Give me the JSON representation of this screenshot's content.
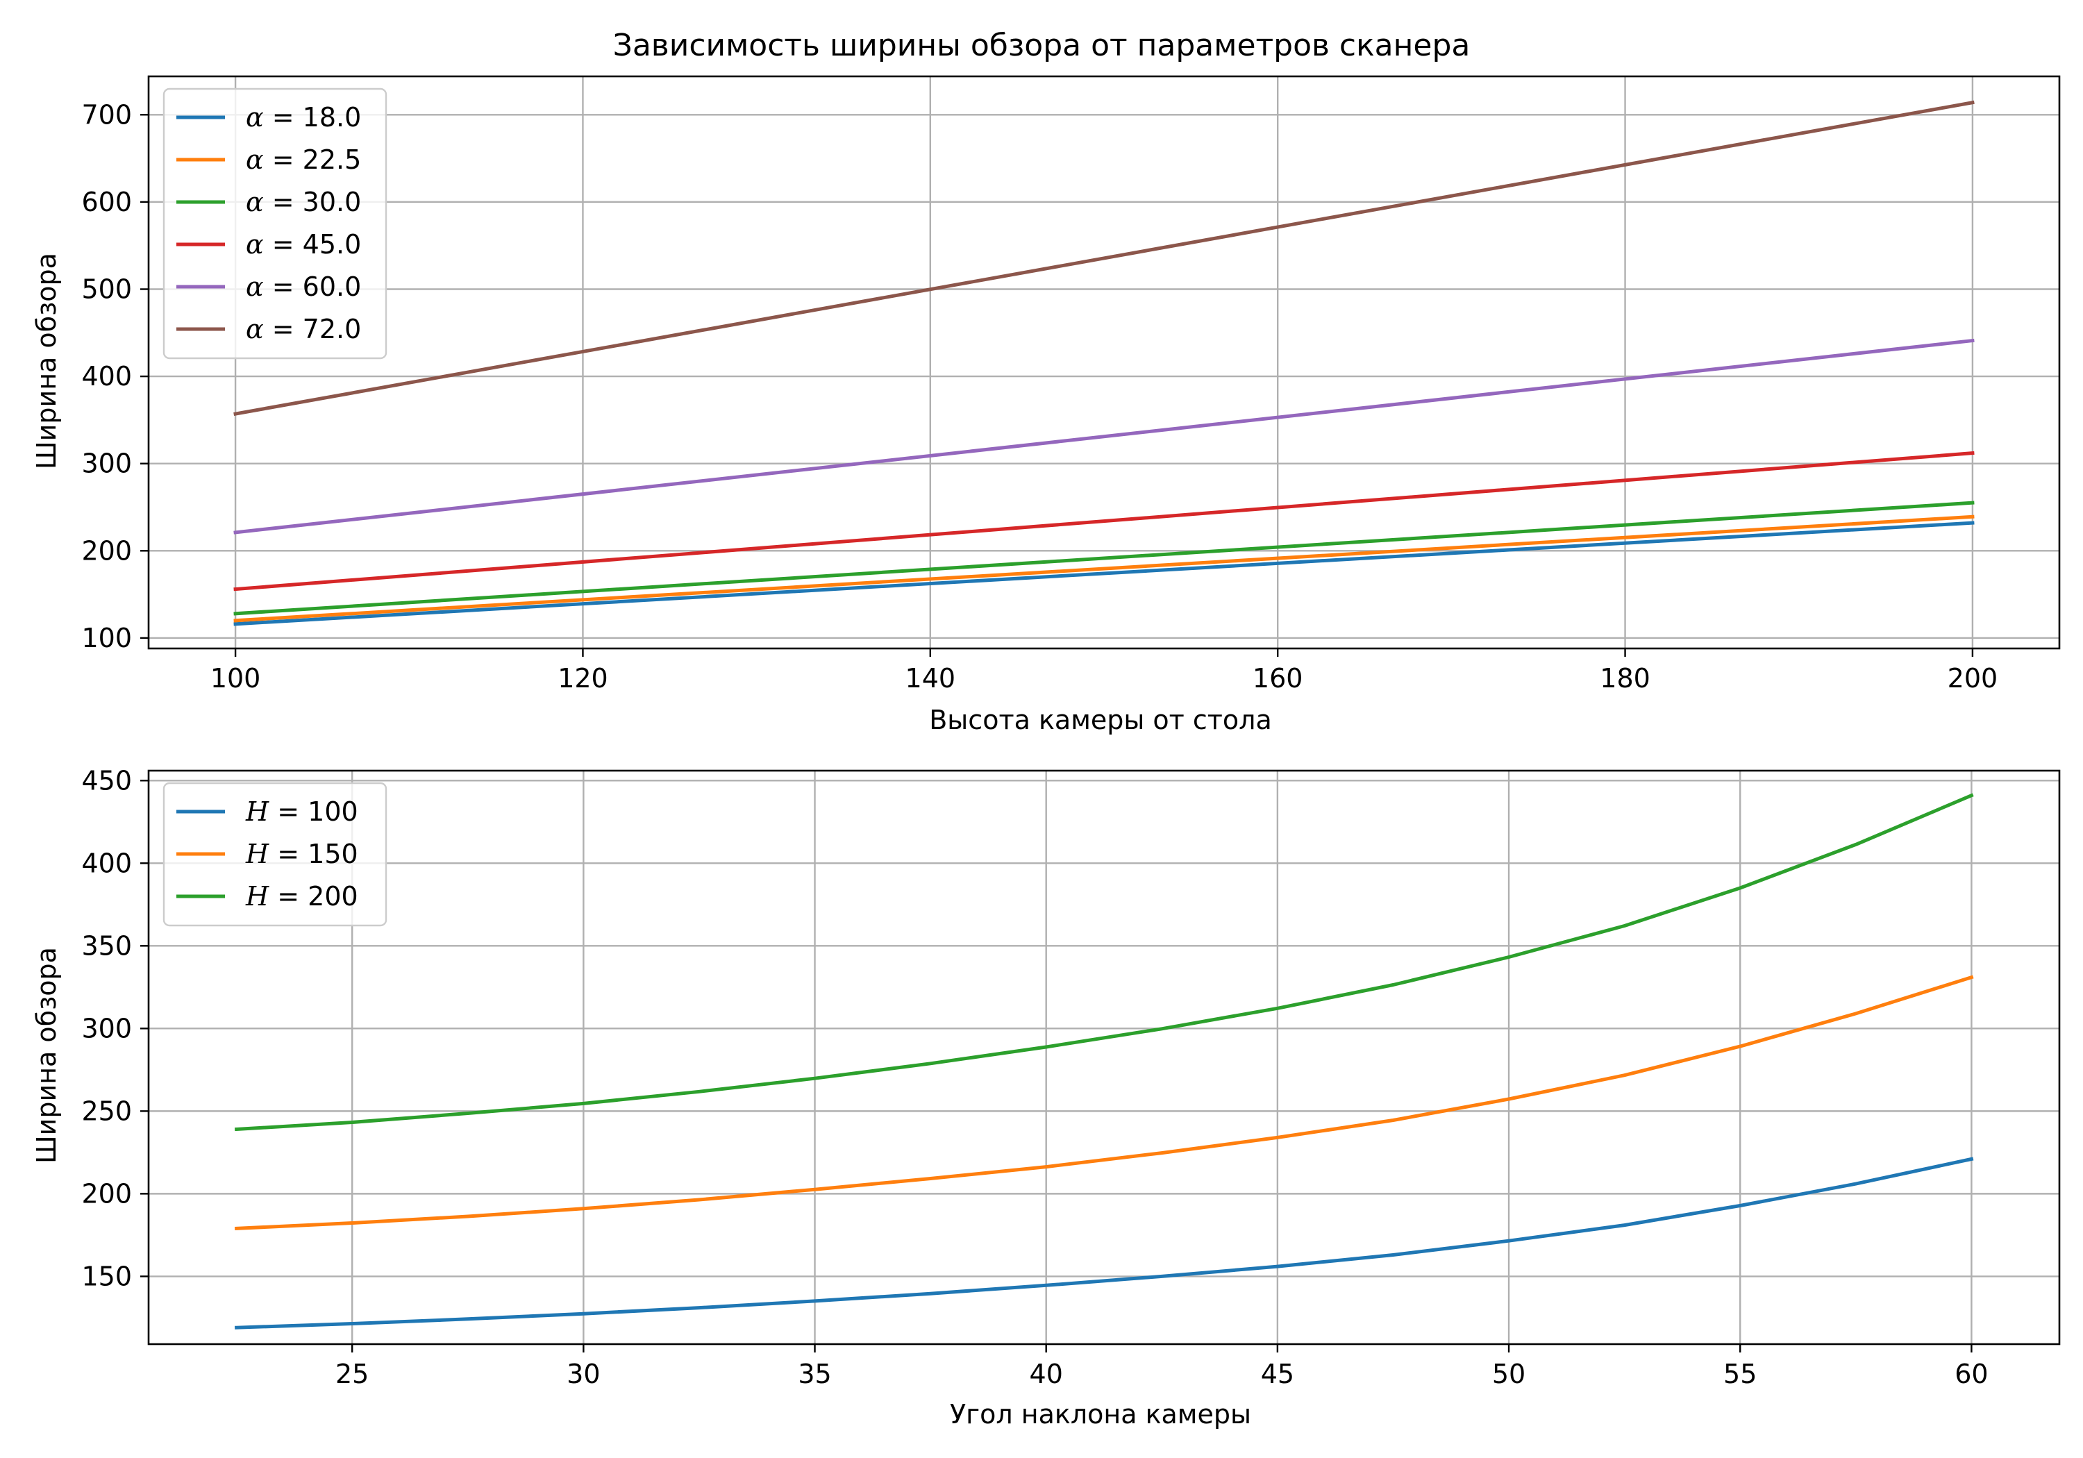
{
  "figure": {
    "title": "Зависимость ширины обзора от параметров сканера"
  },
  "chart_data": [
    {
      "type": "line",
      "xlabel": "Высота камеры от стола",
      "ylabel": "Ширина обзора",
      "xlim": [
        95,
        205
      ],
      "ylim": [
        88,
        744
      ],
      "xticks": [
        100,
        120,
        140,
        160,
        180,
        200
      ],
      "yticks": [
        100,
        200,
        300,
        400,
        500,
        600,
        700
      ],
      "grid": true,
      "legend_position": "top-left",
      "legend_symbol": "α",
      "x": [
        100,
        200
      ],
      "series": [
        {
          "name": "18.0",
          "color": "#1f77b4",
          "values": [
            116,
            232
          ]
        },
        {
          "name": "22.5",
          "color": "#ff7f0e",
          "values": [
            120,
            239
          ]
        },
        {
          "name": "30.0",
          "color": "#2ca02c",
          "values": [
            128,
            255
          ]
        },
        {
          "name": "45.0",
          "color": "#d62728",
          "values": [
            156,
            312
          ]
        },
        {
          "name": "60.0",
          "color": "#9467bd",
          "values": [
            221,
            441
          ]
        },
        {
          "name": "72.0",
          "color": "#8c564b",
          "values": [
            357,
            714
          ]
        }
      ]
    },
    {
      "type": "line",
      "xlabel": "Угол наклона камеры",
      "ylabel": "Ширина обзора",
      "xlim": [
        20.6,
        61.9
      ],
      "ylim": [
        109,
        456
      ],
      "xticks": [
        25,
        30,
        35,
        40,
        45,
        50,
        55,
        60
      ],
      "yticks": [
        150,
        200,
        250,
        300,
        350,
        400,
        450
      ],
      "grid": true,
      "legend_position": "top-left",
      "legend_symbol": "H",
      "x": [
        22.5,
        25,
        27.5,
        30,
        32.5,
        35,
        37.5,
        40,
        42.5,
        45,
        47.5,
        50,
        52.5,
        55,
        57.5,
        60
      ],
      "series": [
        {
          "name": "100",
          "color": "#1f77b4",
          "values": [
            119,
            121.4,
            124.2,
            127.4,
            131.0,
            135.1,
            139.6,
            144.6,
            150.0,
            156.0,
            163.0,
            171.5,
            181.0,
            192.8,
            206.0,
            221
          ]
        },
        {
          "name": "150",
          "color": "#ff7f0e",
          "values": [
            179,
            182.3,
            186.3,
            191.0,
            196.4,
            202.6,
            209.2,
            216.3,
            224.7,
            234.0,
            244.5,
            257.3,
            271.7,
            289.2,
            309.0,
            331
          ]
        },
        {
          "name": "200",
          "color": "#2ca02c",
          "values": [
            239,
            243.2,
            248.7,
            254.6,
            261.8,
            269.8,
            278.8,
            288.8,
            299.8,
            312.2,
            326.4,
            343.2,
            362.1,
            385.0,
            411.3,
            441
          ]
        }
      ]
    }
  ]
}
